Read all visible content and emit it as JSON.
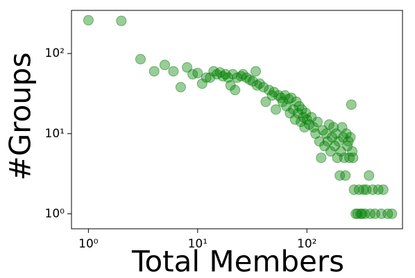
{
  "chart_data": {
    "type": "scatter",
    "x_label": "Total Members",
    "y_label": "#Groups",
    "x": [
      1,
      2,
      3,
      4,
      5,
      6,
      7,
      8,
      9,
      10,
      11,
      12,
      13,
      14,
      15,
      16,
      17,
      18,
      19,
      20,
      21,
      22,
      23,
      25,
      26,
      28,
      30,
      32,
      34,
      35,
      37,
      40,
      42,
      45,
      48,
      50,
      52,
      55,
      58,
      60,
      63,
      65,
      68,
      70,
      72,
      75,
      78,
      80,
      83,
      85,
      88,
      90,
      93,
      95,
      98,
      100,
      105,
      110,
      115,
      120,
      125,
      130,
      135,
      140,
      145,
      150,
      155,
      160,
      165,
      170,
      175,
      180,
      185,
      190,
      195,
      200,
      205,
      210,
      215,
      220,
      225,
      230,
      235,
      240,
      245,
      250,
      255,
      260,
      265,
      270,
      280,
      290,
      300,
      310,
      320,
      330,
      340,
      350,
      370,
      380,
      400,
      420,
      450,
      480,
      500,
      550,
      600
    ],
    "values": [
      260,
      255,
      85,
      60,
      72,
      60,
      38,
      67,
      55,
      57,
      42,
      50,
      50,
      60,
      55,
      58,
      52,
      55,
      50,
      40,
      55,
      35,
      50,
      52,
      55,
      50,
      47,
      45,
      60,
      40,
      42,
      38,
      25,
      35,
      30,
      33,
      20,
      30,
      28,
      25,
      30,
      22,
      27,
      18,
      28,
      20,
      15,
      25,
      18,
      22,
      14,
      20,
      16,
      12,
      18,
      15,
      13,
      16,
      12,
      10,
      14,
      8,
      5,
      11,
      7,
      10,
      8,
      13,
      6,
      9,
      12,
      7,
      10,
      5,
      8,
      3,
      6,
      12,
      9,
      5,
      3,
      10,
      7,
      8,
      5,
      9,
      23,
      6,
      5,
      2,
      1,
      1,
      2,
      1,
      1,
      2,
      1,
      2,
      3,
      1,
      2,
      1,
      2,
      1,
      2,
      1,
      1
    ],
    "color": "green",
    "xscale": "log",
    "yscale": "log",
    "xlim": [
      0.7,
      750
    ],
    "ylim": [
      0.65,
      345
    ],
    "xticks": [
      {
        "value": 1,
        "label": "10⁰"
      },
      {
        "value": 10,
        "label": "10¹"
      },
      {
        "value": 100,
        "label": "10²"
      }
    ],
    "yticks": [
      {
        "value": 1,
        "label": "10⁰"
      },
      {
        "value": 10,
        "label": "10¹"
      },
      {
        "value": 100,
        "label": "10²"
      }
    ]
  }
}
